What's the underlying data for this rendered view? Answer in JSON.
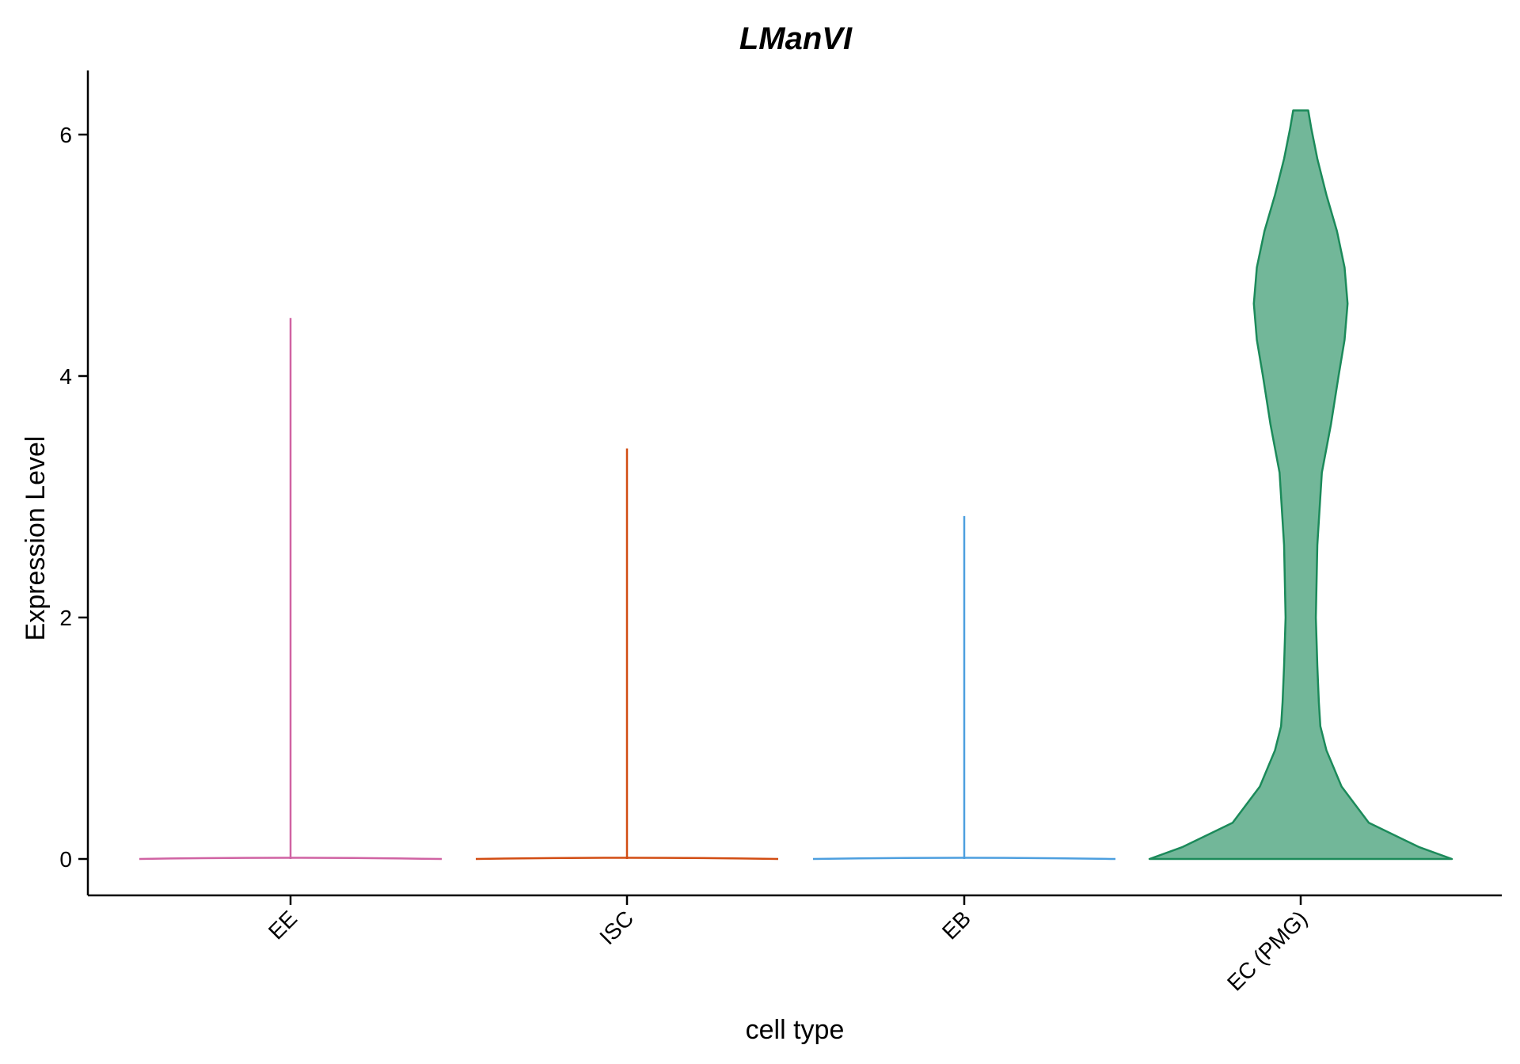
{
  "chart_data": {
    "type": "violin",
    "title": "LManVI",
    "xlabel": "cell type",
    "ylabel": "Expression Level",
    "ylim": [
      -0.3,
      6.5
    ],
    "yticks": [
      0,
      2,
      4,
      6
    ],
    "categories": [
      "EE",
      "ISC",
      "EB",
      "EC (PMG)"
    ],
    "colors": {
      "EE": "#d063a3",
      "ISC": "#d24d13",
      "EB": "#4d9fdf",
      "EC (PMG)": "#1b8a5a"
    },
    "violins": [
      {
        "name": "EE",
        "max": 4.48,
        "profile": [
          [
            0,
            1.0
          ],
          [
            0.02,
            0.2
          ],
          [
            0.1,
            0.0
          ]
        ]
      },
      {
        "name": "ISC",
        "max": 3.4,
        "profile": [
          [
            0,
            1.0
          ],
          [
            0.02,
            0.2
          ],
          [
            0.1,
            0.0
          ]
        ]
      },
      {
        "name": "EB",
        "max": 2.84,
        "profile": [
          [
            0,
            1.0
          ],
          [
            0.02,
            0.2
          ],
          [
            0.1,
            0.0
          ]
        ]
      },
      {
        "name": "EC (PMG)",
        "max": 6.2,
        "profile": [
          [
            0,
            1.0
          ],
          [
            0.1,
            0.78
          ],
          [
            0.3,
            0.45
          ],
          [
            0.6,
            0.27
          ],
          [
            0.9,
            0.17
          ],
          [
            1.1,
            0.13
          ],
          [
            1.3,
            0.12
          ],
          [
            1.6,
            0.11
          ],
          [
            2.0,
            0.1
          ],
          [
            2.6,
            0.11
          ],
          [
            3.2,
            0.14
          ],
          [
            3.6,
            0.2
          ],
          [
            4.0,
            0.25
          ],
          [
            4.3,
            0.29
          ],
          [
            4.6,
            0.31
          ],
          [
            4.9,
            0.29
          ],
          [
            5.2,
            0.24
          ],
          [
            5.5,
            0.17
          ],
          [
            5.8,
            0.11
          ],
          [
            6.05,
            0.07
          ],
          [
            6.2,
            0.05
          ]
        ]
      }
    ]
  }
}
